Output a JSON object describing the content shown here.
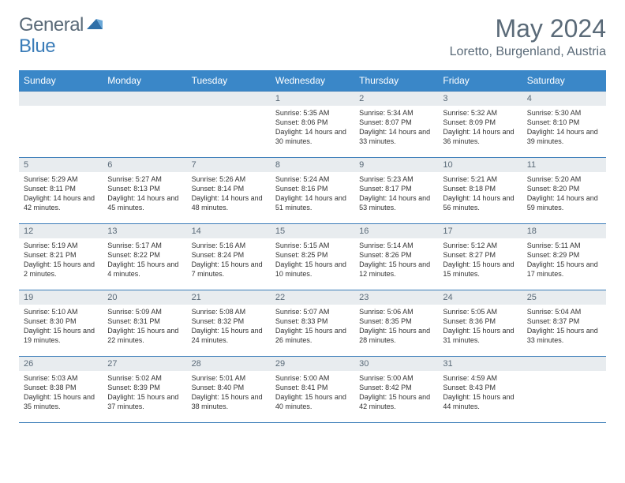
{
  "brand": {
    "word1": "General",
    "word2": "Blue",
    "text_color": "#5a6a78",
    "accent_color": "#3a7cb8"
  },
  "title": "May 2024",
  "location": "Loretto, Burgenland, Austria",
  "header_bg": "#3a87c8",
  "header_text_color": "#ffffff",
  "daynum_bg": "#e8ecef",
  "border_color": "#3a7cb8",
  "weekdays": [
    "Sunday",
    "Monday",
    "Tuesday",
    "Wednesday",
    "Thursday",
    "Friday",
    "Saturday"
  ],
  "weeks": [
    [
      null,
      null,
      null,
      {
        "n": "1",
        "sr": "5:35 AM",
        "ss": "8:06 PM",
        "dl": "14 hours and 30 minutes."
      },
      {
        "n": "2",
        "sr": "5:34 AM",
        "ss": "8:07 PM",
        "dl": "14 hours and 33 minutes."
      },
      {
        "n": "3",
        "sr": "5:32 AM",
        "ss": "8:09 PM",
        "dl": "14 hours and 36 minutes."
      },
      {
        "n": "4",
        "sr": "5:30 AM",
        "ss": "8:10 PM",
        "dl": "14 hours and 39 minutes."
      }
    ],
    [
      {
        "n": "5",
        "sr": "5:29 AM",
        "ss": "8:11 PM",
        "dl": "14 hours and 42 minutes."
      },
      {
        "n": "6",
        "sr": "5:27 AM",
        "ss": "8:13 PM",
        "dl": "14 hours and 45 minutes."
      },
      {
        "n": "7",
        "sr": "5:26 AM",
        "ss": "8:14 PM",
        "dl": "14 hours and 48 minutes."
      },
      {
        "n": "8",
        "sr": "5:24 AM",
        "ss": "8:16 PM",
        "dl": "14 hours and 51 minutes."
      },
      {
        "n": "9",
        "sr": "5:23 AM",
        "ss": "8:17 PM",
        "dl": "14 hours and 53 minutes."
      },
      {
        "n": "10",
        "sr": "5:21 AM",
        "ss": "8:18 PM",
        "dl": "14 hours and 56 minutes."
      },
      {
        "n": "11",
        "sr": "5:20 AM",
        "ss": "8:20 PM",
        "dl": "14 hours and 59 minutes."
      }
    ],
    [
      {
        "n": "12",
        "sr": "5:19 AM",
        "ss": "8:21 PM",
        "dl": "15 hours and 2 minutes."
      },
      {
        "n": "13",
        "sr": "5:17 AM",
        "ss": "8:22 PM",
        "dl": "15 hours and 4 minutes."
      },
      {
        "n": "14",
        "sr": "5:16 AM",
        "ss": "8:24 PM",
        "dl": "15 hours and 7 minutes."
      },
      {
        "n": "15",
        "sr": "5:15 AM",
        "ss": "8:25 PM",
        "dl": "15 hours and 10 minutes."
      },
      {
        "n": "16",
        "sr": "5:14 AM",
        "ss": "8:26 PM",
        "dl": "15 hours and 12 minutes."
      },
      {
        "n": "17",
        "sr": "5:12 AM",
        "ss": "8:27 PM",
        "dl": "15 hours and 15 minutes."
      },
      {
        "n": "18",
        "sr": "5:11 AM",
        "ss": "8:29 PM",
        "dl": "15 hours and 17 minutes."
      }
    ],
    [
      {
        "n": "19",
        "sr": "5:10 AM",
        "ss": "8:30 PM",
        "dl": "15 hours and 19 minutes."
      },
      {
        "n": "20",
        "sr": "5:09 AM",
        "ss": "8:31 PM",
        "dl": "15 hours and 22 minutes."
      },
      {
        "n": "21",
        "sr": "5:08 AM",
        "ss": "8:32 PM",
        "dl": "15 hours and 24 minutes."
      },
      {
        "n": "22",
        "sr": "5:07 AM",
        "ss": "8:33 PM",
        "dl": "15 hours and 26 minutes."
      },
      {
        "n": "23",
        "sr": "5:06 AM",
        "ss": "8:35 PM",
        "dl": "15 hours and 28 minutes."
      },
      {
        "n": "24",
        "sr": "5:05 AM",
        "ss": "8:36 PM",
        "dl": "15 hours and 31 minutes."
      },
      {
        "n": "25",
        "sr": "5:04 AM",
        "ss": "8:37 PM",
        "dl": "15 hours and 33 minutes."
      }
    ],
    [
      {
        "n": "26",
        "sr": "5:03 AM",
        "ss": "8:38 PM",
        "dl": "15 hours and 35 minutes."
      },
      {
        "n": "27",
        "sr": "5:02 AM",
        "ss": "8:39 PM",
        "dl": "15 hours and 37 minutes."
      },
      {
        "n": "28",
        "sr": "5:01 AM",
        "ss": "8:40 PM",
        "dl": "15 hours and 38 minutes."
      },
      {
        "n": "29",
        "sr": "5:00 AM",
        "ss": "8:41 PM",
        "dl": "15 hours and 40 minutes."
      },
      {
        "n": "30",
        "sr": "5:00 AM",
        "ss": "8:42 PM",
        "dl": "15 hours and 42 minutes."
      },
      {
        "n": "31",
        "sr": "4:59 AM",
        "ss": "8:43 PM",
        "dl": "15 hours and 44 minutes."
      },
      null
    ]
  ],
  "labels": {
    "sunrise": "Sunrise: ",
    "sunset": "Sunset: ",
    "daylight": "Daylight: "
  }
}
